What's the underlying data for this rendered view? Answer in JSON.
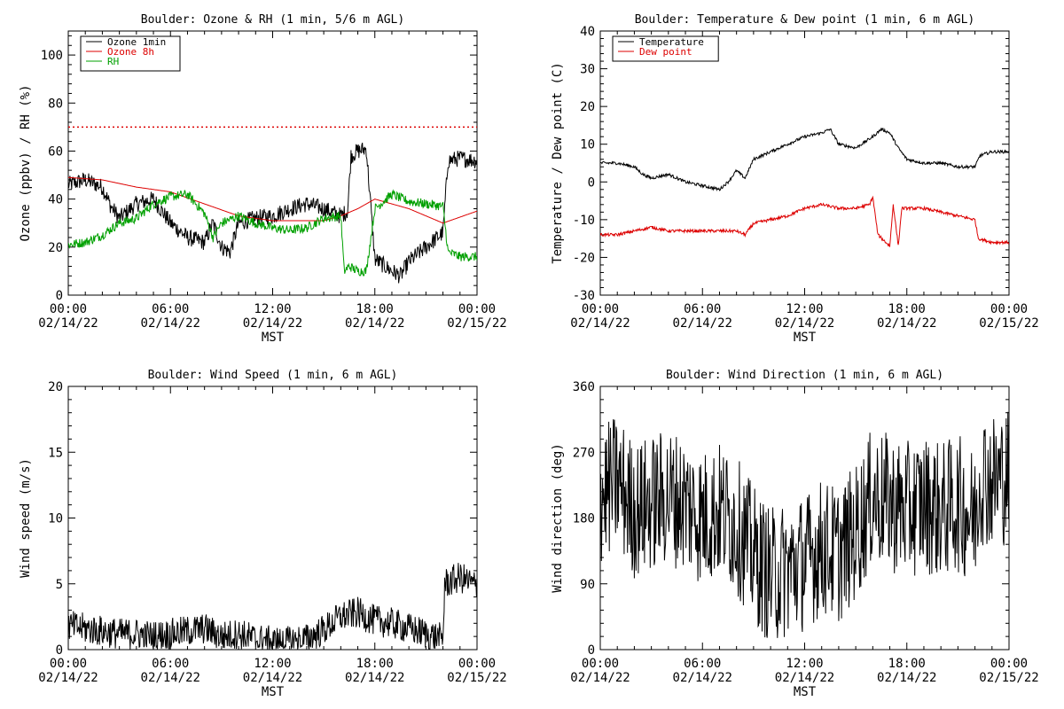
{
  "chart_data": [
    {
      "type": "line",
      "title": "Boulder: Ozone & RH (1 min, 5/6 m AGL)",
      "ylabel": "Ozone (ppbv) / RH (%)",
      "xlabel": "MST",
      "ylim": [
        0,
        110
      ],
      "yticks": [
        0,
        20,
        40,
        60,
        80,
        100
      ],
      "xlim": [
        0,
        24
      ],
      "xticks": [
        {
          "x": 0,
          "time": "00:00",
          "date": "02/14/22"
        },
        {
          "x": 6,
          "time": "06:00",
          "date": "02/14/22"
        },
        {
          "x": 12,
          "time": "12:00",
          "date": "02/14/22"
        },
        {
          "x": 18,
          "time": "18:00",
          "date": "02/14/22"
        },
        {
          "x": 24,
          "time": "00:00",
          "date": "02/15/22"
        }
      ],
      "legend": "top-left",
      "reference_line": {
        "y": 70,
        "color": "#dd0000",
        "style": "dotted"
      },
      "series": [
        {
          "name": "Ozone 1min",
          "color": "#000000",
          "noise": 3.5,
          "x": [
            0,
            1,
            2,
            2.5,
            3,
            4,
            5,
            6,
            7,
            8,
            8.5,
            9,
            9.5,
            10,
            11,
            12,
            13,
            14,
            15,
            16,
            16.4,
            16.6,
            17,
            17.5,
            18,
            19,
            19.5,
            20,
            21,
            22,
            22.3,
            23,
            24
          ],
          "y": [
            46,
            48,
            45,
            37,
            32,
            38,
            40,
            30,
            24,
            22,
            30,
            20,
            18,
            30,
            32,
            33,
            36,
            38,
            36,
            33,
            35,
            58,
            60,
            61,
            15,
            10,
            8,
            14,
            20,
            26,
            56,
            57,
            56
          ]
        },
        {
          "name": "Ozone 8h",
          "color": "#dd0000",
          "noise": 0,
          "x": [
            0,
            2,
            4,
            6,
            8,
            10,
            12,
            14,
            15,
            16,
            17,
            18,
            20,
            22,
            24
          ],
          "y": [
            49,
            48,
            45,
            43,
            38,
            33,
            31,
            31,
            31,
            33,
            36,
            40,
            36,
            30,
            35
          ]
        },
        {
          "name": "RH",
          "color": "#00a000",
          "noise": 2,
          "x": [
            0,
            1,
            2,
            3,
            4,
            5,
            6,
            7,
            8,
            8.5,
            9,
            10,
            11,
            12,
            13,
            14,
            15,
            16,
            16.2,
            16.5,
            17,
            17.5,
            18,
            19,
            20,
            21,
            22,
            22.3,
            23,
            24
          ],
          "y": [
            21,
            22,
            25,
            30,
            32,
            38,
            41,
            42,
            34,
            24,
            30,
            33,
            30,
            28,
            27,
            28,
            32,
            33,
            10,
            12,
            10,
            10,
            36,
            42,
            39,
            38,
            37,
            18,
            16,
            16
          ]
        }
      ]
    },
    {
      "type": "line",
      "title": "Boulder: Temperature & Dew point (1 min, 6 m AGL)",
      "ylabel": "Temperature / Dew point (C)",
      "xlabel": "MST",
      "ylim": [
        -30,
        40
      ],
      "yticks": [
        -30,
        -20,
        -10,
        0,
        10,
        20,
        30,
        40
      ],
      "xlim": [
        0,
        24
      ],
      "xticks": [
        {
          "x": 0,
          "time": "00:00",
          "date": "02/14/22"
        },
        {
          "x": 6,
          "time": "06:00",
          "date": "02/14/22"
        },
        {
          "x": 12,
          "time": "12:00",
          "date": "02/14/22"
        },
        {
          "x": 18,
          "time": "18:00",
          "date": "02/14/22"
        },
        {
          "x": 24,
          "time": "00:00",
          "date": "02/15/22"
        }
      ],
      "legend": "top-left",
      "series": [
        {
          "name": "Temperature",
          "color": "#000000",
          "noise": 0.4,
          "x": [
            0,
            1,
            2,
            2.5,
            3,
            4,
            5,
            6,
            7,
            7.5,
            8,
            8.5,
            9,
            10,
            11,
            12,
            13,
            13.5,
            14,
            15,
            16,
            16.5,
            17,
            17.5,
            18,
            19,
            20,
            21,
            22,
            22.3,
            23,
            24
          ],
          "y": [
            5,
            5,
            4,
            2,
            1,
            2,
            0,
            -1,
            -2,
            0,
            3,
            1,
            6,
            8,
            10,
            12,
            13,
            14,
            10,
            9,
            12,
            14,
            13,
            9,
            6,
            5,
            5,
            4,
            4,
            7,
            8,
            8
          ]
        },
        {
          "name": "Dew point",
          "color": "#dd0000",
          "noise": 0.4,
          "x": [
            0,
            1,
            2,
            3,
            4,
            5,
            6,
            7,
            8,
            8.5,
            9,
            10,
            11,
            12,
            13,
            14,
            15,
            15.8,
            16,
            16.3,
            17,
            17.2,
            17.5,
            17.7,
            18,
            19,
            20,
            21,
            22,
            22.2,
            23,
            24
          ],
          "y": [
            -14,
            -14,
            -13,
            -12,
            -13,
            -13,
            -13,
            -13,
            -13,
            -14,
            -11,
            -10,
            -9,
            -7,
            -6,
            -7,
            -7,
            -6,
            -4,
            -14,
            -17,
            -6,
            -17,
            -7,
            -7,
            -7,
            -8,
            -9,
            -10,
            -15,
            -16,
            -16
          ]
        }
      ]
    },
    {
      "type": "line",
      "title": "Boulder: Wind Speed (1 min, 6 m AGL)",
      "ylabel": "Wind speed (m/s)",
      "xlabel": "MST",
      "ylim": [
        0,
        20
      ],
      "yticks": [
        0,
        5,
        10,
        15,
        20
      ],
      "xlim": [
        0,
        24
      ],
      "xticks": [
        {
          "x": 0,
          "time": "00:00",
          "date": "02/14/22"
        },
        {
          "x": 6,
          "time": "06:00",
          "date": "02/14/22"
        },
        {
          "x": 12,
          "time": "12:00",
          "date": "02/14/22"
        },
        {
          "x": 18,
          "time": "18:00",
          "date": "02/14/22"
        },
        {
          "x": 24,
          "time": "00:00",
          "date": "02/15/22"
        }
      ],
      "series": [
        {
          "name": "",
          "color": "#000000",
          "noise": 1.2,
          "floor": 0,
          "x": [
            0,
            1,
            2,
            3,
            4,
            5,
            6,
            7,
            8,
            9,
            10,
            11,
            12,
            13,
            14,
            15,
            16,
            17,
            18,
            19,
            20,
            21,
            22,
            22.1,
            23,
            24
          ],
          "y": [
            1.8,
            1.6,
            1.4,
            1.2,
            1.2,
            1.0,
            1.2,
            1.4,
            1.6,
            1.0,
            1.2,
            0.8,
            0.6,
            0.6,
            0.8,
            1.5,
            2.5,
            2.8,
            2.2,
            2.0,
            1.6,
            1.2,
            0.8,
            5.0,
            5.5,
            4.8
          ]
        }
      ]
    },
    {
      "type": "line",
      "title": "Boulder: Wind Direction (1 min, 6 m AGL)",
      "ylabel": "Wind direction (deg)",
      "xlabel": "MST",
      "ylim": [
        0,
        360
      ],
      "yticks": [
        0,
        90,
        180,
        270,
        360
      ],
      "xlim": [
        0,
        24
      ],
      "xticks": [
        {
          "x": 0,
          "time": "00:00",
          "date": "02/14/22"
        },
        {
          "x": 6,
          "time": "06:00",
          "date": "02/14/22"
        },
        {
          "x": 12,
          "time": "12:00",
          "date": "02/14/22"
        },
        {
          "x": 18,
          "time": "18:00",
          "date": "02/14/22"
        },
        {
          "x": 24,
          "time": "00:00",
          "date": "02/15/22"
        }
      ],
      "series": [
        {
          "name": "",
          "color": "#000000",
          "noise": 95,
          "floor": 0,
          "ceil": 360,
          "x": [
            0,
            1,
            2,
            3,
            4,
            5,
            6,
            7,
            8,
            9,
            10,
            11,
            12,
            13,
            14,
            15,
            16,
            17,
            18,
            19,
            20,
            21,
            22,
            22.3,
            23,
            24
          ],
          "y": [
            210,
            230,
            190,
            200,
            210,
            200,
            180,
            190,
            170,
            130,
            100,
            110,
            120,
            140,
            130,
            160,
            210,
            200,
            190,
            200,
            190,
            200,
            180,
            240,
            230,
            240
          ]
        }
      ]
    }
  ]
}
